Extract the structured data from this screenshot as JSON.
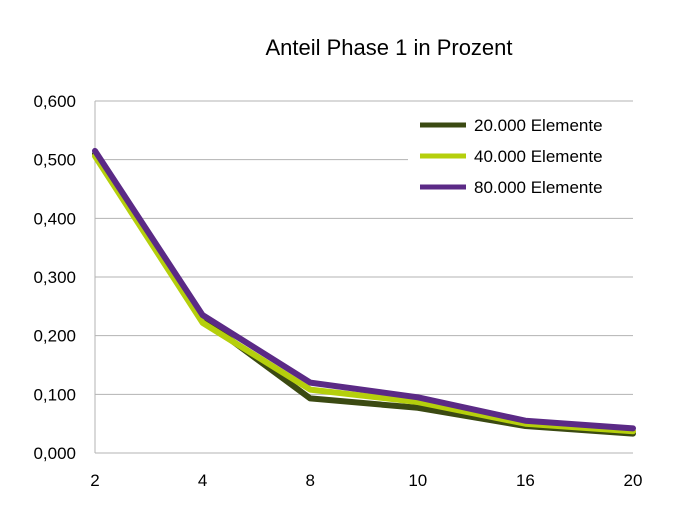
{
  "chart_data": {
    "type": "line",
    "title": "Anteil Phase 1 in Prozent",
    "xlabel": "",
    "ylabel": "",
    "categories": [
      "2",
      "4",
      "8",
      "10",
      "16",
      "20"
    ],
    "ylim": [
      0,
      0.6
    ],
    "yticks": [
      "0,000",
      "0,100",
      "0,200",
      "0,300",
      "0,400",
      "0,500",
      "0,600"
    ],
    "yticks_values": [
      0,
      0.1,
      0.2,
      0.3,
      0.4,
      0.5,
      0.6
    ],
    "grid": true,
    "legend_position": "top-right",
    "series": [
      {
        "name": "20.000 Elemente",
        "color": "#3b4a12",
        "values": [
          0.51,
          0.228,
          0.093,
          0.077,
          0.046,
          0.033
        ]
      },
      {
        "name": "40.000 Elemente",
        "color": "#b5cf0c",
        "values": [
          0.506,
          0.222,
          0.108,
          0.087,
          0.05,
          0.037
        ]
      },
      {
        "name": "80.000 Elemente",
        "color": "#5b2a86",
        "values": [
          0.515,
          0.235,
          0.12,
          0.095,
          0.055,
          0.042
        ]
      }
    ]
  }
}
